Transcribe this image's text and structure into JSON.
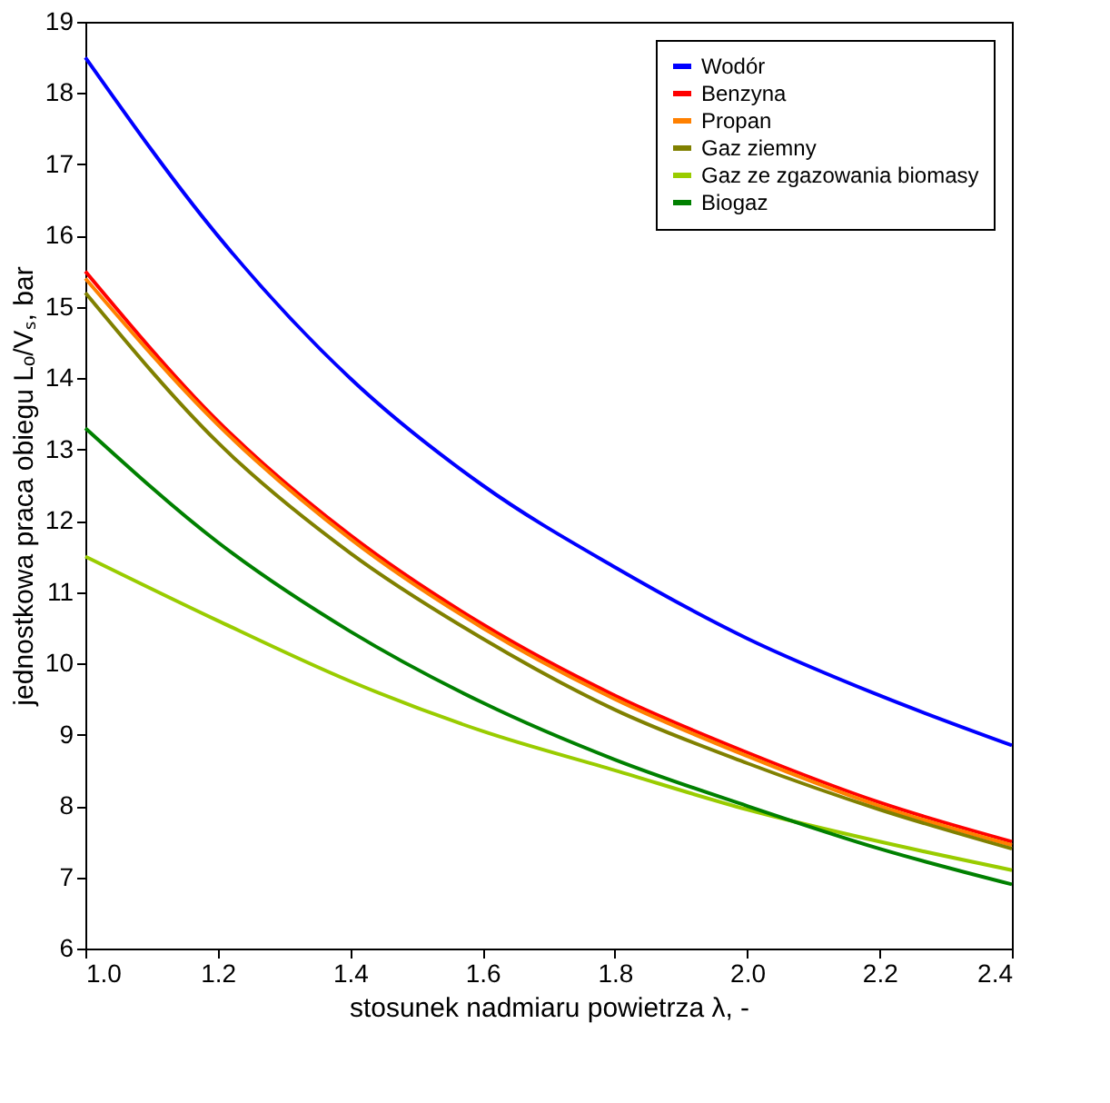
{
  "chart_data": {
    "type": "line",
    "xlabel": "stosunek nadmiaru powietrza λ, -",
    "ylabel": "jednostkowa praca obiegu Lₒ/Vₛ, bar",
    "x": [
      1.0,
      1.2,
      1.4,
      1.6,
      1.8,
      2.0,
      2.2,
      2.4
    ],
    "series": [
      {
        "name": "Wodór",
        "color": "#0000ff",
        "values": [
          18.5,
          16.0,
          14.0,
          12.5,
          11.35,
          10.35,
          9.55,
          8.85
        ]
      },
      {
        "name": "Benzyna",
        "color": "#ff0000",
        "values": [
          15.5,
          13.4,
          11.8,
          10.55,
          9.55,
          8.75,
          8.05,
          7.5
        ]
      },
      {
        "name": "Propan",
        "color": "#ff8000",
        "values": [
          15.4,
          13.35,
          11.75,
          10.5,
          9.5,
          8.7,
          8.0,
          7.45
        ]
      },
      {
        "name": "Gaz ziemny",
        "color": "#808000",
        "values": [
          15.2,
          13.1,
          11.55,
          10.35,
          9.35,
          8.6,
          7.95,
          7.4
        ]
      },
      {
        "name": "Gaz ze zgazowania biomasy",
        "color": "#99cc00",
        "values": [
          11.5,
          10.6,
          9.75,
          9.05,
          8.5,
          7.95,
          7.5,
          7.1
        ]
      },
      {
        "name": "Biogaz",
        "color": "#008000",
        "values": [
          13.3,
          11.7,
          10.45,
          9.45,
          8.65,
          8.0,
          7.4,
          6.9
        ]
      }
    ],
    "xlim": [
      1.0,
      2.4
    ],
    "xticks": [
      {
        "value": 1,
        "label": "1.0"
      },
      1.2,
      1.4,
      1.6,
      1.8,
      {
        "value": 2,
        "label": "2.0"
      },
      2.2,
      2.4
    ],
    "ylim": [
      6,
      19
    ],
    "yticks": [
      6,
      7,
      8,
      9,
      10,
      11,
      12,
      13,
      14,
      15,
      16,
      17,
      18,
      19
    ],
    "grid": false,
    "legend": "top right",
    "line_style": "solid",
    "marker": "none"
  }
}
